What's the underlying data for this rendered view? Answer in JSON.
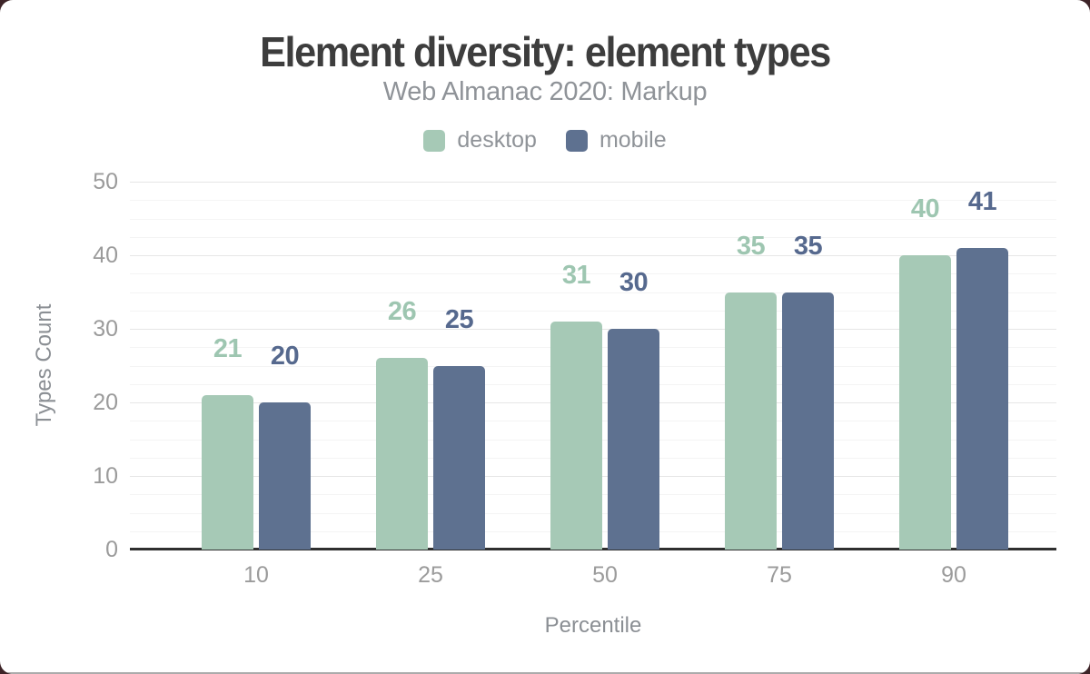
{
  "page": {
    "outer_background": "#3d2428",
    "card_background": "#ffffff",
    "bottom_edge_color": "#ababab"
  },
  "header": {
    "title": "Element diversity: element types",
    "subtitle": "Web Almanac 2020: Markup"
  },
  "legend": {
    "items": [
      {
        "label": "desktop",
        "color": "#a6c9b6"
      },
      {
        "label": "mobile",
        "color": "#5e7190"
      }
    ]
  },
  "chart_data": {
    "type": "bar",
    "title": "Element diversity: element types",
    "subtitle": "Web Almanac 2020: Markup",
    "xlabel": "Percentile",
    "ylabel": "Types Count",
    "categories": [
      "10",
      "25",
      "50",
      "75",
      "90"
    ],
    "series": [
      {
        "name": "desktop",
        "color": "#a6c9b6",
        "label_color": "#9ec6b1",
        "values": [
          21,
          26,
          31,
          35,
          40
        ]
      },
      {
        "name": "mobile",
        "color": "#5e7190",
        "label_color": "#56698e",
        "values": [
          20,
          25,
          30,
          35,
          41
        ]
      }
    ],
    "ylim": [
      0,
      50
    ],
    "yticks": [
      0,
      10,
      20,
      30,
      40,
      50
    ],
    "minor_tick_step": 2.5,
    "grid": true,
    "data_labels": true,
    "legend_position": "top",
    "axis_colors": {
      "baseline": "#2f2f2f",
      "major_grid": "#e6e6e6",
      "minor_grid": "#f4f4f4",
      "tick_labels": "#9b9b9b",
      "axis_titles": "#8b8f94"
    }
  }
}
